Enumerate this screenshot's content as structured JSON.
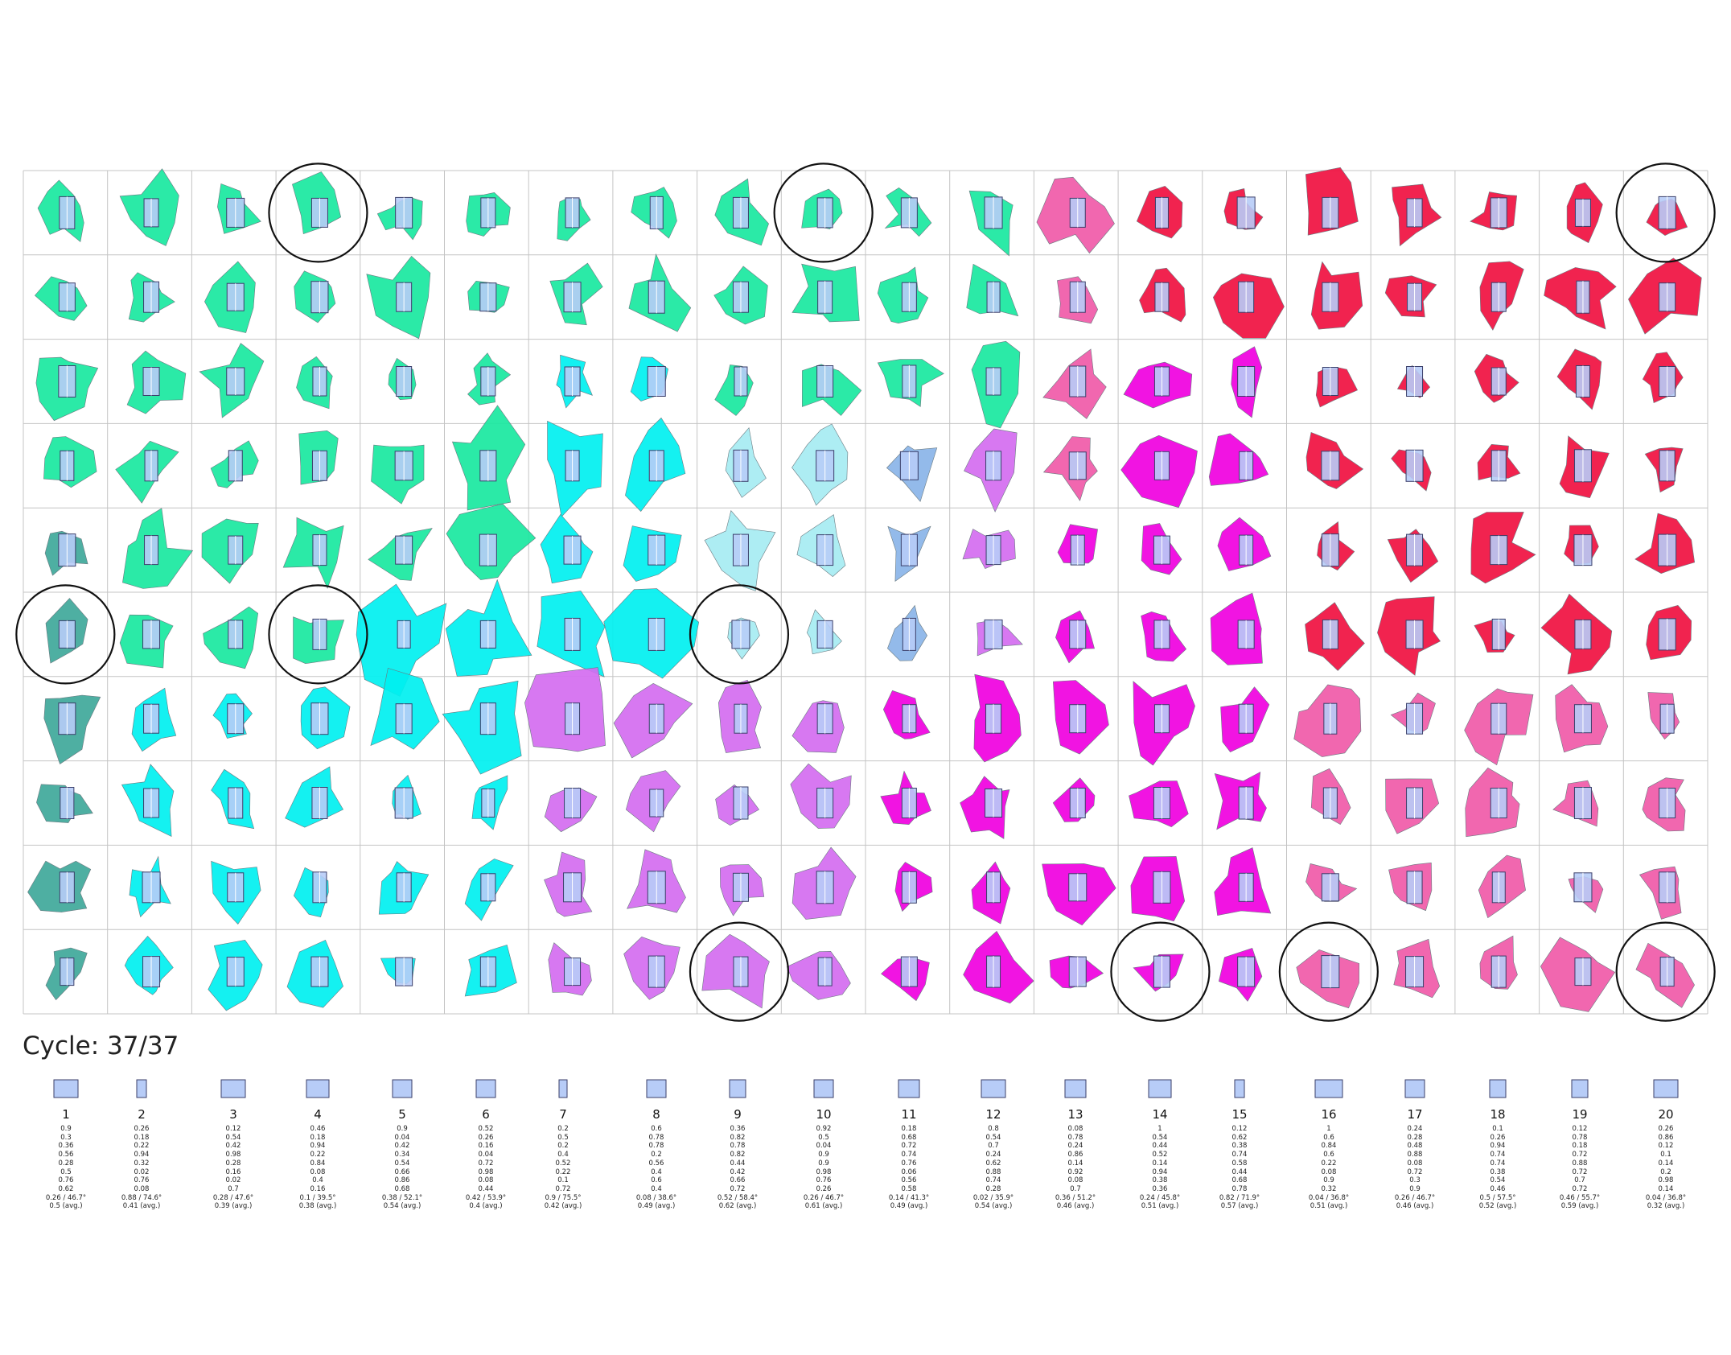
{
  "cycle": {
    "label": "Cycle: 37/37"
  },
  "grid": {
    "rows": 10,
    "cols": 20,
    "circled_cells": [
      [
        1,
        4
      ],
      [
        1,
        10
      ],
      [
        1,
        20
      ],
      [
        6,
        1
      ],
      [
        6,
        4
      ],
      [
        6,
        9
      ],
      [
        10,
        9
      ],
      [
        10,
        14
      ],
      [
        10,
        16
      ],
      [
        10,
        20
      ]
    ]
  },
  "colors": {
    "teal": "#3fa89a",
    "green": "#19e8a0",
    "cyan": "#00f0f0",
    "lightcyan": "#a6ecf2",
    "blue": "#8ab4e8",
    "lavender": "#c7a4f0",
    "violet": "#d46cf0",
    "magenta": "#f000e0",
    "pink": "#f05aa8",
    "red": "#f01040",
    "orange": "#ff4000",
    "block": "#b7ccf7"
  },
  "legend": {
    "columns": [
      {
        "num": "1",
        "vals": [
          "0.9",
          "0.3",
          "0.36",
          "0.56",
          "0.28",
          "0.5",
          "0.76",
          "0.62",
          "0.26 / 46.7°",
          "0.5 (avg.)"
        ]
      },
      {
        "num": "2",
        "vals": [
          "0.26",
          "0.18",
          "0.22",
          "0.94",
          "0.32",
          "0.02",
          "0.76",
          "0.08",
          "0.88 / 74.6°",
          "0.41 (avg.)"
        ]
      },
      {
        "num": "3",
        "vals": [
          "0.12",
          "0.54",
          "0.42",
          "0.98",
          "0.28",
          "0.16",
          "0.02",
          "0.7",
          "0.28 / 47.6°",
          "0.39 (avg.)"
        ]
      },
      {
        "num": "4",
        "vals": [
          "0.46",
          "0.18",
          "0.94",
          "0.22",
          "0.84",
          "0.08",
          "0.4",
          "0.16",
          "0.1 / 39.5°",
          "0.38 (avg.)"
        ]
      },
      {
        "num": "5",
        "vals": [
          "0.9",
          "0.04",
          "0.42",
          "0.34",
          "0.54",
          "0.66",
          "0.86",
          "0.68",
          "0.38 / 52.1°",
          "0.54 (avg.)"
        ]
      },
      {
        "num": "6",
        "vals": [
          "0.52",
          "0.26",
          "0.16",
          "0.04",
          "0.72",
          "0.98",
          "0.08",
          "0.44",
          "0.42 / 53.9°",
          "0.4 (avg.)"
        ]
      },
      {
        "num": "7",
        "vals": [
          "0.2",
          "0.5",
          "0.2",
          "0.4",
          "0.52",
          "0.22",
          "0.1",
          "0.72",
          "0.9 / 75.5°",
          "0.42 (avg.)"
        ]
      },
      {
        "num": "8",
        "vals": [
          "0.6",
          "0.78",
          "0.78",
          "0.2",
          "0.56",
          "0.4",
          "0.6",
          "0.4",
          "0.08 / 38.6°",
          "0.49 (avg.)"
        ]
      },
      {
        "num": "9",
        "vals": [
          "0.36",
          "0.82",
          "0.78",
          "0.82",
          "0.44",
          "0.42",
          "0.66",
          "0.72",
          "0.52 / 58.4°",
          "0.62 (avg.)"
        ]
      },
      {
        "num": "10",
        "vals": [
          "0.92",
          "0.5",
          "0.04",
          "0.9",
          "0.9",
          "0.98",
          "0.76",
          "0.26",
          "0.26 / 46.7°",
          "0.61 (avg.)"
        ]
      },
      {
        "num": "11",
        "vals": [
          "0.18",
          "0.68",
          "0.72",
          "0.74",
          "0.76",
          "0.06",
          "0.56",
          "0.58",
          "0.14 / 41.3°",
          "0.49 (avg.)"
        ]
      },
      {
        "num": "12",
        "vals": [
          "0.8",
          "0.54",
          "0.7",
          "0.24",
          "0.62",
          "0.88",
          "0.74",
          "0.28",
          "0.02 / 35.9°",
          "0.54 (avg.)"
        ]
      },
      {
        "num": "13",
        "vals": [
          "0.08",
          "0.78",
          "0.24",
          "0.86",
          "0.14",
          "0.92",
          "0.08",
          "0.7",
          "0.36 / 51.2°",
          "0.46 (avg.)"
        ]
      },
      {
        "num": "14",
        "vals": [
          "1",
          "0.54",
          "0.44",
          "0.52",
          "0.14",
          "0.94",
          "0.38",
          "0.36",
          "0.24 / 45.8°",
          "0.51 (avg.)"
        ]
      },
      {
        "num": "15",
        "vals": [
          "0.12",
          "0.62",
          "0.38",
          "0.74",
          "0.58",
          "0.44",
          "0.68",
          "0.78",
          "0.82 / 71.9°",
          "0.57 (avg.)"
        ]
      },
      {
        "num": "16",
        "vals": [
          "1",
          "0.6",
          "0.84",
          "0.6",
          "0.22",
          "0.08",
          "0.9",
          "0.32",
          "0.04 / 36.8°",
          "0.51 (avg.)"
        ]
      },
      {
        "num": "17",
        "vals": [
          "0.24",
          "0.28",
          "0.48",
          "0.88",
          "0.08",
          "0.72",
          "0.3",
          "0.9",
          "0.26 / 46.7°",
          "0.46 (avg.)"
        ]
      },
      {
        "num": "18",
        "vals": [
          "0.1",
          "0.26",
          "0.94",
          "0.74",
          "0.74",
          "0.38",
          "0.54",
          "0.46",
          "0.5 / 57.5°",
          "0.52 (avg.)"
        ]
      },
      {
        "num": "19",
        "vals": [
          "0.12",
          "0.78",
          "0.18",
          "0.72",
          "0.88",
          "0.72",
          "0.7",
          "0.72",
          "0.46 / 55.7°",
          "0.59 (avg.)"
        ]
      },
      {
        "num": "20",
        "vals": [
          "0.26",
          "0.86",
          "0.12",
          "0.1",
          "0.14",
          "0.2",
          "0.98",
          "0.14",
          "0.04 / 36.8°",
          "0.32 (avg.)"
        ]
      }
    ]
  }
}
